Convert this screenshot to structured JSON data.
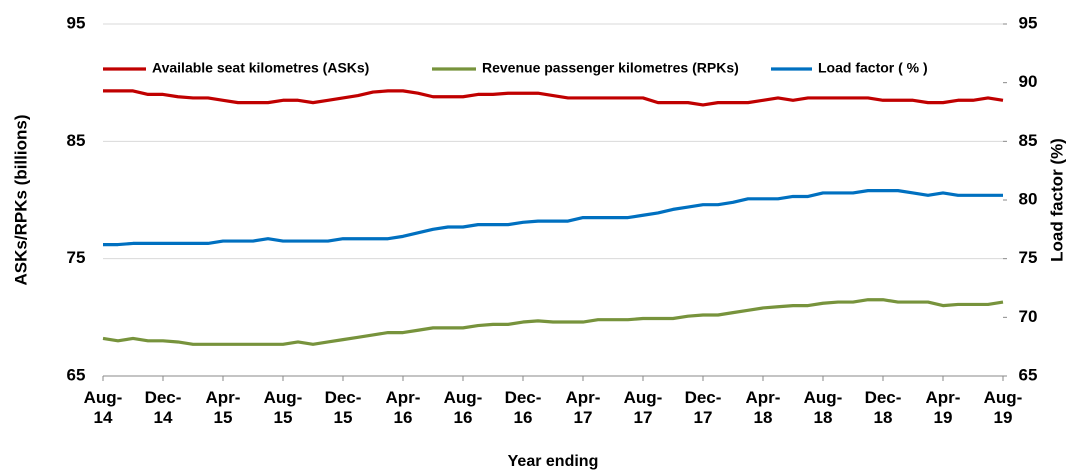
{
  "chart_data": {
    "type": "line",
    "x_label": "Year ending",
    "y_label": "ASKs/RPKs (billions)",
    "y2_label": "Load factor (%)",
    "categories": [
      "Aug-14",
      null,
      null,
      null,
      "Dec-14",
      null,
      null,
      null,
      "Apr-15",
      null,
      null,
      null,
      "Aug-15",
      null,
      null,
      null,
      "Dec-15",
      null,
      null,
      null,
      "Apr-16",
      null,
      null,
      null,
      "Aug-16",
      null,
      null,
      null,
      "Dec-16",
      null,
      null,
      null,
      "Apr-17",
      null,
      null,
      null,
      "Aug-17",
      null,
      null,
      null,
      "Dec-17",
      null,
      null,
      null,
      "Apr-18",
      null,
      null,
      null,
      "Aug-18",
      null,
      null,
      null,
      "Dec-18",
      null,
      null,
      null,
      "Apr-19",
      null,
      null,
      null,
      "Aug-19"
    ],
    "series": [
      {
        "name": "Available seat kilometres (ASKs)",
        "color": "#c00000",
        "values": [
          89.3,
          89.3,
          89.3,
          89.0,
          89.0,
          88.8,
          88.7,
          88.7,
          88.5,
          88.3,
          88.3,
          88.3,
          88.5,
          88.5,
          88.3,
          88.5,
          88.7,
          88.9,
          89.2,
          89.3,
          89.3,
          89.1,
          88.8,
          88.8,
          88.8,
          89.0,
          89.0,
          89.1,
          89.1,
          89.1,
          88.9,
          88.7,
          88.7,
          88.7,
          88.7,
          88.7,
          88.7,
          88.3,
          88.3,
          88.3,
          88.1,
          88.3,
          88.3,
          88.3,
          88.5,
          88.7,
          88.5,
          88.7,
          88.7,
          88.7,
          88.7,
          88.7,
          88.5,
          88.5,
          88.5,
          88.3,
          88.3,
          88.5,
          88.5,
          88.7,
          88.5
        ]
      },
      {
        "name": "Revenue passenger kilometres (RPKs)",
        "color": "#77933c",
        "values": [
          68.2,
          68.0,
          68.2,
          68.0,
          68.0,
          67.9,
          67.7,
          67.7,
          67.7,
          67.7,
          67.7,
          67.7,
          67.7,
          67.9,
          67.7,
          67.9,
          68.1,
          68.3,
          68.5,
          68.7,
          68.7,
          68.9,
          69.1,
          69.1,
          69.1,
          69.3,
          69.4,
          69.4,
          69.6,
          69.7,
          69.6,
          69.6,
          69.6,
          69.8,
          69.8,
          69.8,
          69.9,
          69.9,
          69.9,
          70.1,
          70.2,
          70.2,
          70.4,
          70.6,
          70.8,
          70.9,
          71.0,
          71.0,
          71.2,
          71.3,
          71.3,
          71.5,
          71.5,
          71.3,
          71.3,
          71.3,
          71.0,
          71.1,
          71.1,
          71.1,
          71.3
        ]
      },
      {
        "name": "Load factor ( % )",
        "color": "#0070c0",
        "axis": "y2",
        "values": [
          76.2,
          76.2,
          76.3,
          76.3,
          76.3,
          76.3,
          76.3,
          76.3,
          76.5,
          76.5,
          76.5,
          76.7,
          76.5,
          76.5,
          76.5,
          76.5,
          76.7,
          76.7,
          76.7,
          76.7,
          76.9,
          77.2,
          77.5,
          77.7,
          77.7,
          77.9,
          77.9,
          77.9,
          78.1,
          78.2,
          78.2,
          78.2,
          78.5,
          78.5,
          78.5,
          78.5,
          78.7,
          78.9,
          79.2,
          79.4,
          79.6,
          79.6,
          79.8,
          80.1,
          80.1,
          80.1,
          80.3,
          80.3,
          80.6,
          80.6,
          80.6,
          80.8,
          80.8,
          80.8,
          80.6,
          80.4,
          80.6,
          80.4,
          80.4,
          80.4,
          80.4
        ]
      }
    ],
    "ylim": [
      65,
      95
    ],
    "yticks": [
      65,
      75,
      85,
      95
    ],
    "y2lim": [
      65,
      95
    ],
    "y2ticks": [
      65,
      70,
      75,
      80,
      85,
      90,
      95
    ],
    "grid": true,
    "legend": "top"
  }
}
